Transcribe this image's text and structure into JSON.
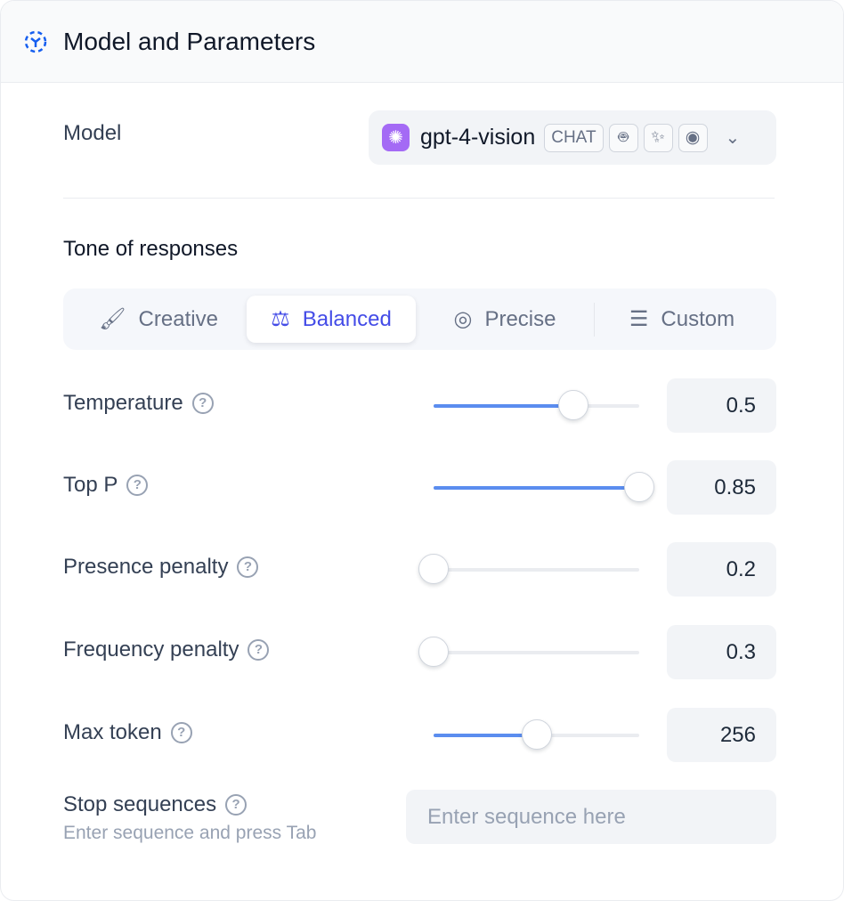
{
  "header": {
    "title": "Model and Parameters",
    "icon": "model-cube-icon",
    "accent": "#155eef"
  },
  "model": {
    "label": "Model",
    "name": "gpt-4-vision",
    "badge": "CHAT",
    "features": [
      "robot-icon",
      "magic-wand-icon",
      "eye-icon"
    ],
    "logo_color": "#a46af5"
  },
  "tone": {
    "label": "Tone of responses",
    "tabs": [
      {
        "label": "Creative",
        "icon": "brush-icon"
      },
      {
        "label": "Balanced",
        "icon": "scale-icon",
        "active": true
      },
      {
        "label": "Precise",
        "icon": "target-icon"
      },
      {
        "label": "Custom",
        "icon": "sliders-icon"
      }
    ],
    "active_color": "#444ce7"
  },
  "params": [
    {
      "label": "Temperature",
      "value": "0.5",
      "slider_percent": 68
    },
    {
      "label": "Top P",
      "value": "0.85",
      "slider_percent": 100
    },
    {
      "label": "Presence penalty",
      "value": "0.2",
      "slider_percent": 0
    },
    {
      "label": "Frequency penalty",
      "value": "0.3",
      "slider_percent": 0
    },
    {
      "label": "Max token",
      "value": "256",
      "slider_percent": 50
    }
  ],
  "stop": {
    "label": "Stop sequences",
    "hint": "Enter sequence and press Tab",
    "placeholder": "Enter sequence here"
  }
}
